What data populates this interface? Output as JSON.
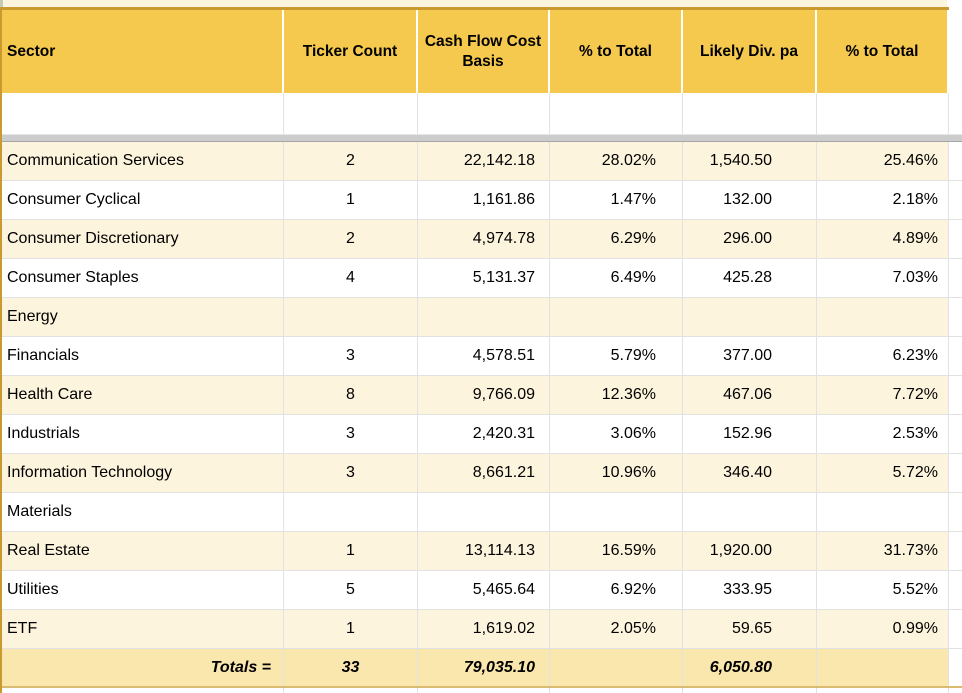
{
  "table": {
    "columns": [
      {
        "label": "Sector"
      },
      {
        "label": "Ticker Count"
      },
      {
        "label": "Cash Flow Cost Basis"
      },
      {
        "label": "% to Total"
      },
      {
        "label": "Likely Div. pa"
      },
      {
        "label": "% to Total"
      }
    ],
    "rows": [
      {
        "sector": "Communication Services",
        "count": "2",
        "cost": "22,142.18",
        "pctcf": "28.02%",
        "div": "1,540.50",
        "pctdiv": "25.46%"
      },
      {
        "sector": "Consumer Cyclical",
        "count": "1",
        "cost": "1,161.86",
        "pctcf": "1.47%",
        "div": "132.00",
        "pctdiv": "2.18%"
      },
      {
        "sector": "Consumer Discretionary",
        "count": "2",
        "cost": "4,974.78",
        "pctcf": "6.29%",
        "div": "296.00",
        "pctdiv": "4.89%"
      },
      {
        "sector": "Consumer Staples",
        "count": "4",
        "cost": "5,131.37",
        "pctcf": "6.49%",
        "div": "425.28",
        "pctdiv": "7.03%"
      },
      {
        "sector": "Energy",
        "count": "",
        "cost": "",
        "pctcf": "",
        "div": "",
        "pctdiv": ""
      },
      {
        "sector": "Financials",
        "count": "3",
        "cost": "4,578.51",
        "pctcf": "5.79%",
        "div": "377.00",
        "pctdiv": "6.23%"
      },
      {
        "sector": "Health Care",
        "count": "8",
        "cost": "9,766.09",
        "pctcf": "12.36%",
        "div": "467.06",
        "pctdiv": "7.72%"
      },
      {
        "sector": "Industrials",
        "count": "3",
        "cost": "2,420.31",
        "pctcf": "3.06%",
        "div": "152.96",
        "pctdiv": "2.53%"
      },
      {
        "sector": "Information Technology",
        "count": "3",
        "cost": "8,661.21",
        "pctcf": "10.96%",
        "div": "346.40",
        "pctdiv": "5.72%"
      },
      {
        "sector": "Materials",
        "count": "",
        "cost": "",
        "pctcf": "",
        "div": "",
        "pctdiv": ""
      },
      {
        "sector": "Real Estate",
        "count": "1",
        "cost": "13,114.13",
        "pctcf": "16.59%",
        "div": "1,920.00",
        "pctdiv": "31.73%"
      },
      {
        "sector": "Utilities",
        "count": "5",
        "cost": "5,465.64",
        "pctcf": "6.92%",
        "div": "333.95",
        "pctdiv": "5.52%"
      },
      {
        "sector": "ETF",
        "count": "1",
        "cost": "1,619.02",
        "pctcf": "2.05%",
        "div": "59.65",
        "pctdiv": "0.99%"
      }
    ],
    "totals": {
      "label": "Totals =",
      "count": "33",
      "cost": "79,035.10",
      "pctcf": "",
      "div": "6,050.80",
      "pctdiv": ""
    }
  },
  "colors": {
    "header_yellow": "#F5C94E",
    "cream_row": "#FCF4DC",
    "totals_row": "#FAE7AE",
    "gold_border": "#CA9A31",
    "totals_bottom_border": "#D9BC72",
    "grid_line": "#E2E2E2",
    "freeze_bar": "#CCCCCC",
    "sage_corner": "#C2CBB4"
  }
}
